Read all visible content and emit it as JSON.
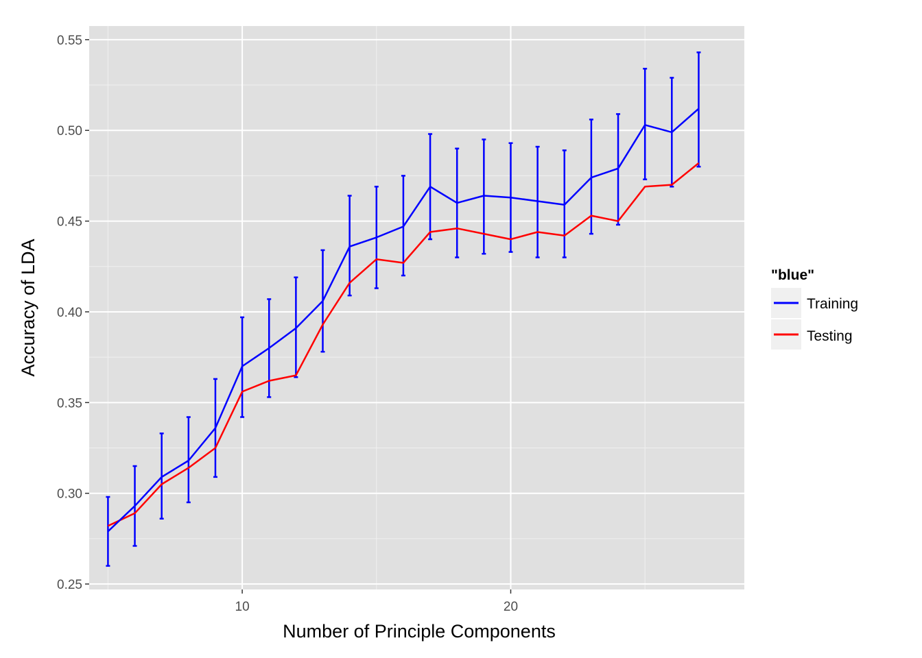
{
  "chart_data": {
    "type": "line",
    "xlabel": "Number of Principle Components",
    "ylabel": "Accuracy of LDA",
    "xlim": [
      4.3,
      28.7
    ],
    "ylim": [
      0.247,
      0.5575
    ],
    "x_ticks": [
      10,
      20
    ],
    "y_ticks": [
      0.25,
      0.3,
      0.35,
      0.4,
      0.45,
      0.5,
      0.55
    ],
    "y_tick_labels": [
      "0.25",
      "0.30",
      "0.35",
      "0.40",
      "0.45",
      "0.50",
      "0.55"
    ],
    "grid": true,
    "legend": {
      "title": "\"blue\"",
      "position": "right",
      "entries": [
        "Training",
        "Testing"
      ]
    },
    "x": [
      5,
      6,
      7,
      8,
      9,
      10,
      11,
      12,
      13,
      14,
      15,
      16,
      17,
      18,
      19,
      20,
      21,
      22,
      23,
      24,
      25,
      26,
      27
    ],
    "series": [
      {
        "name": "Training",
        "color": "#0000ff",
        "values": [
          0.279,
          0.293,
          0.309,
          0.318,
          0.336,
          0.37,
          0.38,
          0.391,
          0.406,
          0.436,
          0.441,
          0.447,
          0.469,
          0.46,
          0.464,
          0.463,
          0.461,
          0.459,
          0.474,
          0.479,
          0.503,
          0.499,
          0.512
        ],
        "error_lower": [
          0.26,
          0.271,
          0.286,
          0.295,
          0.309,
          0.342,
          0.353,
          0.364,
          0.378,
          0.409,
          0.413,
          0.42,
          0.44,
          0.43,
          0.432,
          0.433,
          0.43,
          0.43,
          0.443,
          0.448,
          0.473,
          0.469,
          0.48
        ],
        "error_upper": [
          0.298,
          0.315,
          0.333,
          0.342,
          0.363,
          0.397,
          0.407,
          0.419,
          0.434,
          0.464,
          0.469,
          0.475,
          0.498,
          0.49,
          0.495,
          0.493,
          0.491,
          0.489,
          0.506,
          0.509,
          0.534,
          0.529,
          0.543
        ]
      },
      {
        "name": "Testing",
        "color": "#ff0000",
        "values": [
          0.282,
          0.289,
          0.305,
          0.314,
          0.325,
          0.356,
          0.362,
          0.365,
          0.393,
          0.416,
          0.429,
          0.427,
          0.444,
          0.446,
          0.443,
          0.44,
          0.444,
          0.442,
          0.453,
          0.45,
          0.469,
          0.47,
          0.482
        ]
      }
    ]
  },
  "colors": {
    "panel_background": "#e0e0e0",
    "grid_major": "#ffffff",
    "grid_minor": "#f0f0f0",
    "legend_key_background": "#f0f0f0"
  }
}
